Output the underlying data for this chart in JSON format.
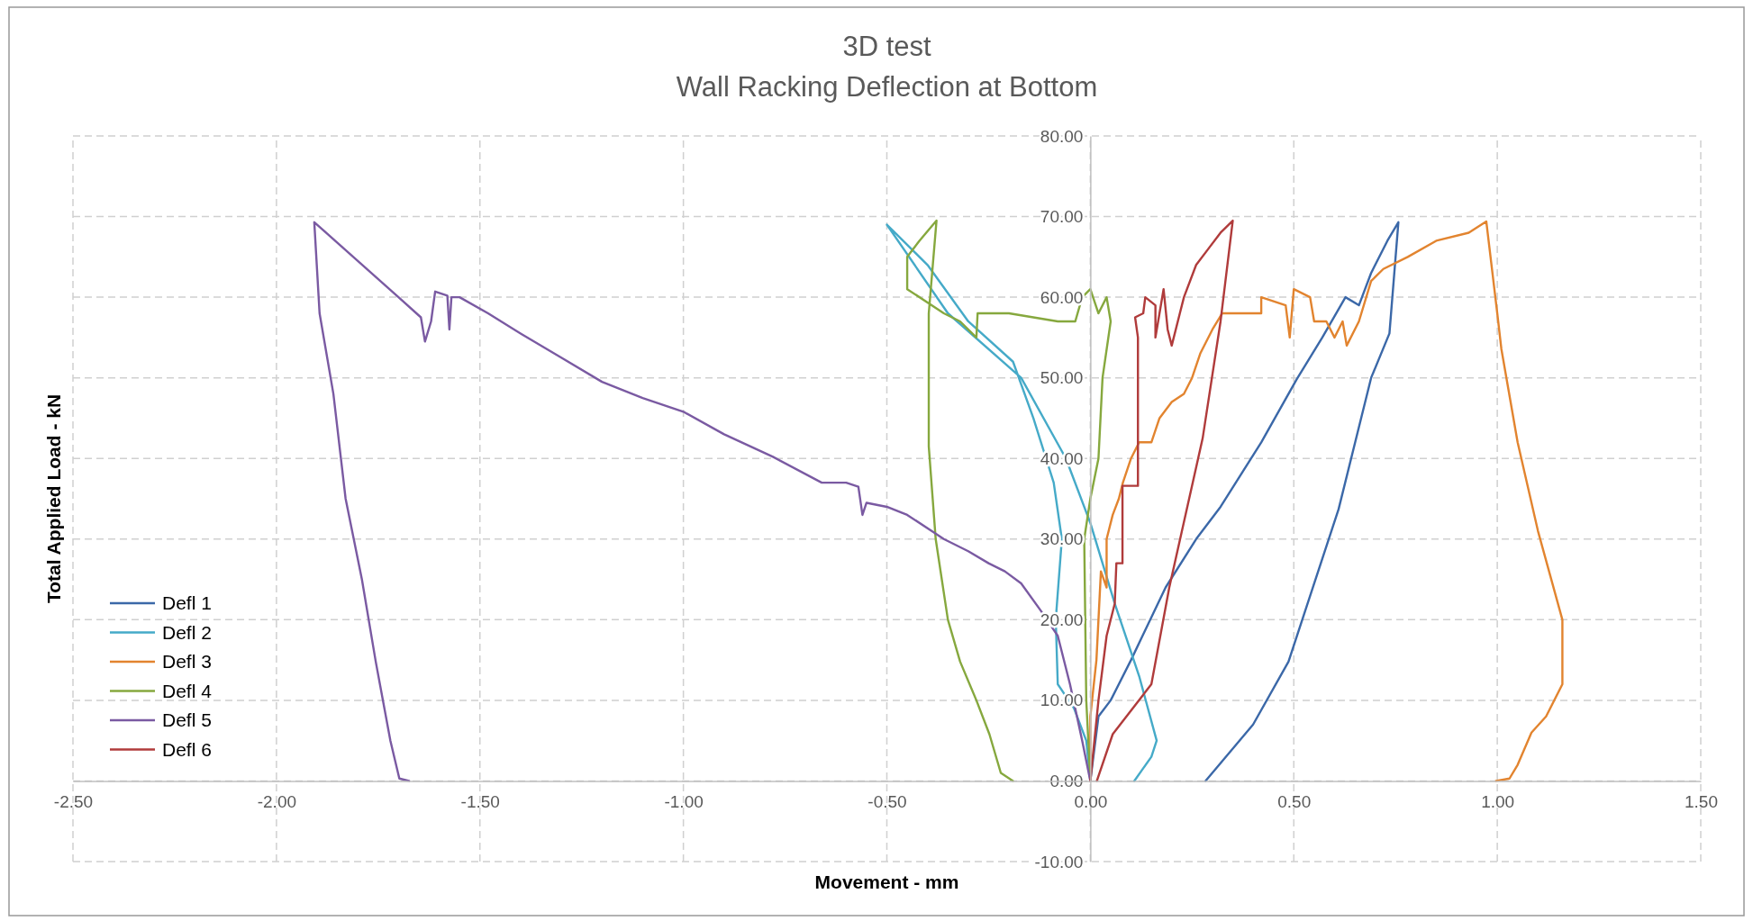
{
  "chart_data": {
    "type": "line",
    "title": "3D test",
    "subtitle": "Wall Racking Deflection at Bottom",
    "xlabel": "Movement - mm",
    "ylabel": "Total Applied Load - kN",
    "xlim": [
      -2.5,
      1.5
    ],
    "xticks": [
      {
        "value": -2.5,
        "label": "-2.50"
      },
      {
        "value": -2,
        "label": "-2.00"
      },
      {
        "value": -1.5,
        "label": "-1.50"
      },
      {
        "value": -1,
        "label": "-1.00"
      },
      {
        "value": -0.5,
        "label": "-0.50"
      },
      {
        "value": 0,
        "label": "0.00"
      },
      {
        "value": 0.5,
        "label": "0.50"
      },
      {
        "value": 1,
        "label": "1.00"
      },
      {
        "value": 1.5,
        "label": "1.50"
      }
    ],
    "ylim": [
      -10,
      80
    ],
    "yticks": [
      {
        "value": -10,
        "label": "-10.00"
      },
      {
        "value": 0,
        "label": "0.00"
      },
      {
        "value": 10,
        "label": "10.00"
      },
      {
        "value": 20,
        "label": "20.00"
      },
      {
        "value": 30,
        "label": "30.00"
      },
      {
        "value": 40,
        "label": "40.00"
      },
      {
        "value": 50,
        "label": "50.00"
      },
      {
        "value": 60,
        "label": "60.00"
      },
      {
        "value": 70,
        "label": "70.00"
      },
      {
        "value": 80,
        "label": "80.00"
      }
    ],
    "grid": true,
    "legend": "bottom left",
    "marker": "none",
    "line_style": "solid",
    "series": [
      {
        "name": "Defl 1",
        "color": "#3b68a8",
        "x": [
          0,
          0.02,
          0.05,
          0.1,
          0.185,
          0.26,
          0.32,
          0.42,
          0.507,
          0.57,
          0.627,
          0.66,
          0.69,
          0.73,
          0.757,
          0.735,
          0.69,
          0.61,
          0.487,
          0.4,
          0.283
        ],
        "values": [
          0,
          8,
          10,
          15,
          24,
          30,
          34,
          42,
          49.8,
          55,
          60,
          59,
          63,
          67,
          69.3,
          55.5,
          50,
          33.7,
          14.8,
          7,
          0
        ]
      },
      {
        "name": "Defl 2",
        "color": "#45aac8",
        "x": [
          0,
          -0.01,
          -0.04,
          -0.08,
          -0.085,
          -0.07,
          -0.09,
          -0.14,
          -0.19,
          -0.3,
          -0.4,
          -0.5,
          -0.35,
          -0.17,
          -0.06,
          0,
          0.06,
          0.12,
          0.163,
          0.15,
          0.108
        ],
        "values": [
          0,
          5,
          9,
          12,
          20,
          30,
          37,
          45,
          52,
          57,
          64,
          69,
          58,
          50,
          40,
          32,
          22,
          13,
          5,
          3,
          0
        ]
      },
      {
        "name": "Defl 3",
        "color": "#e2842f",
        "x": [
          0,
          0,
          0.015,
          0.026,
          0.04,
          0.04,
          0.055,
          0.07,
          0.08,
          0.1,
          0.12,
          0.15,
          0.17,
          0.2,
          0.23,
          0.25,
          0.27,
          0.3,
          0.324,
          0.42,
          0.42,
          0.48,
          0.49,
          0.5,
          0.54,
          0.55,
          0.58,
          0.6,
          0.62,
          0.63,
          0.66,
          0.69,
          0.72,
          0.78,
          0.85,
          0.93,
          0.973,
          1.0,
          1.01,
          1.05,
          1.1,
          1.16,
          1.16,
          1.12,
          1.084,
          1.05,
          1.03,
          0.997
        ],
        "values": [
          0,
          8,
          15,
          26,
          24,
          30,
          33,
          35,
          37,
          40,
          42,
          42,
          45,
          47,
          48,
          50,
          53,
          56,
          58,
          58,
          60,
          59,
          55,
          61,
          60,
          57,
          57,
          55,
          57,
          54,
          57,
          62,
          63.5,
          65,
          67,
          68,
          69.4,
          58,
          53.6,
          42,
          31,
          20,
          12,
          8,
          6,
          2,
          0.3,
          0
        ]
      },
      {
        "name": "Defl 4",
        "color": "#86a83e",
        "x": [
          0,
          -0.01,
          -0.015,
          0,
          0.02,
          0.03,
          0.05,
          0.04,
          0.02,
          0,
          -0.02,
          -0.037,
          -0.08,
          -0.2,
          -0.277,
          -0.28,
          -0.32,
          -0.36,
          -0.45,
          -0.45,
          -0.42,
          -0.378,
          -0.397,
          -0.397,
          -0.38,
          -0.35,
          -0.32,
          -0.28,
          -0.248,
          -0.22,
          -0.19
        ],
        "values": [
          0,
          10,
          30,
          35,
          40,
          50,
          57,
          60,
          58,
          61,
          60,
          57,
          57,
          58,
          58,
          55,
          57,
          58,
          61,
          65,
          67,
          69.5,
          58,
          41.5,
          30,
          20,
          14.8,
          10,
          5.8,
          1,
          0
        ]
      },
      {
        "name": "Defl 5",
        "color": "#7a5aa2",
        "x": [
          0,
          -0.02,
          -0.05,
          -0.08,
          -0.12,
          -0.17,
          -0.21,
          -0.25,
          -0.3,
          -0.36,
          -0.39,
          -0.45,
          -0.5,
          -0.55,
          -0.56,
          -0.57,
          -0.6,
          -0.66,
          -0.78,
          -0.9,
          -1.0,
          -1.1,
          -1.2,
          -1.3,
          -1.4,
          -1.48,
          -1.55,
          -1.57,
          -1.575,
          -1.58,
          -1.61,
          -1.62,
          -1.635,
          -1.645,
          -1.7,
          -1.8,
          -1.907,
          -1.894,
          -1.86,
          -1.83,
          -1.79,
          -1.756,
          -1.72,
          -1.698,
          -1.674
        ],
        "values": [
          0,
          5,
          12,
          18,
          21,
          24.5,
          26,
          27,
          28.5,
          30,
          31,
          33,
          34,
          34.5,
          33,
          36.5,
          37,
          37,
          40.2,
          43,
          45.8,
          47.5,
          49.5,
          52.5,
          55.5,
          58,
          60,
          60,
          56,
          60.2,
          60.7,
          57,
          54.5,
          57.5,
          60,
          64.5,
          69.3,
          58,
          48,
          35,
          25,
          14.8,
          5,
          0.3,
          0
        ]
      },
      {
        "name": "Defl 6",
        "color": "#b03b3b",
        "x": [
          0,
          0.01,
          0.02,
          0.04,
          0.06,
          0.064,
          0.079,
          0.079,
          0.117,
          0.117,
          0.117,
          0.11,
          0.13,
          0.135,
          0.16,
          0.16,
          0.17,
          0.18,
          0.19,
          0.2,
          0.22,
          0.23,
          0.26,
          0.29,
          0.32,
          0.35,
          0.32,
          0.276,
          0.194,
          0.15,
          0.055,
          0.016
        ],
        "values": [
          0,
          5,
          10,
          18,
          22,
          27,
          27,
          36.6,
          36.6,
          45,
          55,
          57.5,
          58,
          60,
          59,
          55,
          58,
          61,
          56,
          54,
          58,
          60,
          64,
          66,
          68,
          69.5,
          57,
          42.5,
          24,
          12,
          5.8,
          0
        ]
      }
    ]
  }
}
